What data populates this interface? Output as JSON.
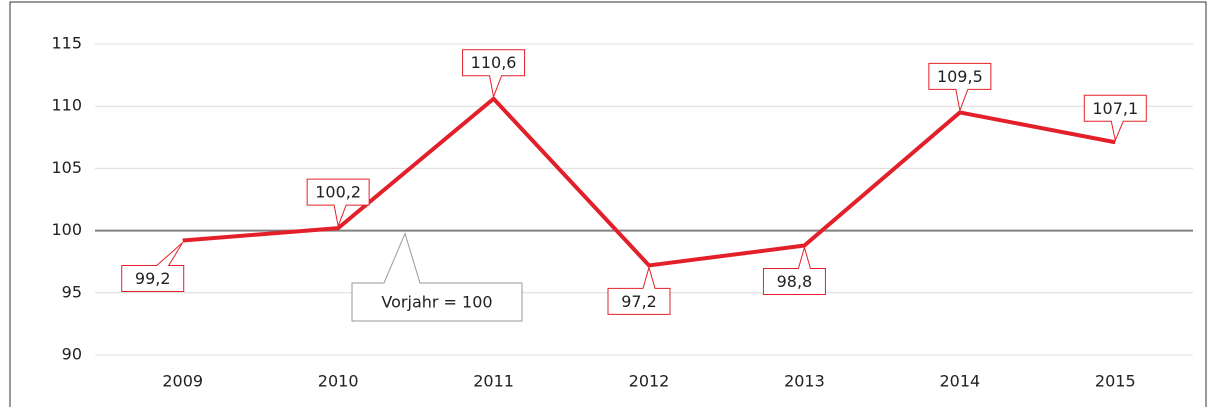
{
  "chart_data": {
    "type": "line",
    "categories": [
      "2009",
      "2010",
      "2011",
      "2012",
      "2013",
      "2014",
      "2015"
    ],
    "series": [
      {
        "color": "#e3202a",
        "values": [
          99.2,
          100.2,
          110.6,
          97.2,
          98.8,
          109.5,
          107.1
        ],
        "value_labels": [
          "99,2",
          "100,2",
          "110,6",
          "97,2",
          "98,8",
          "109,5",
          "107,1"
        ]
      }
    ],
    "ylim": [
      90,
      115
    ],
    "yticks": [
      90,
      95,
      100,
      105,
      110,
      115
    ],
    "grid": true,
    "reference_line": {
      "value": 100,
      "label": "Vorjahr = 100",
      "color": "#808080"
    }
  }
}
